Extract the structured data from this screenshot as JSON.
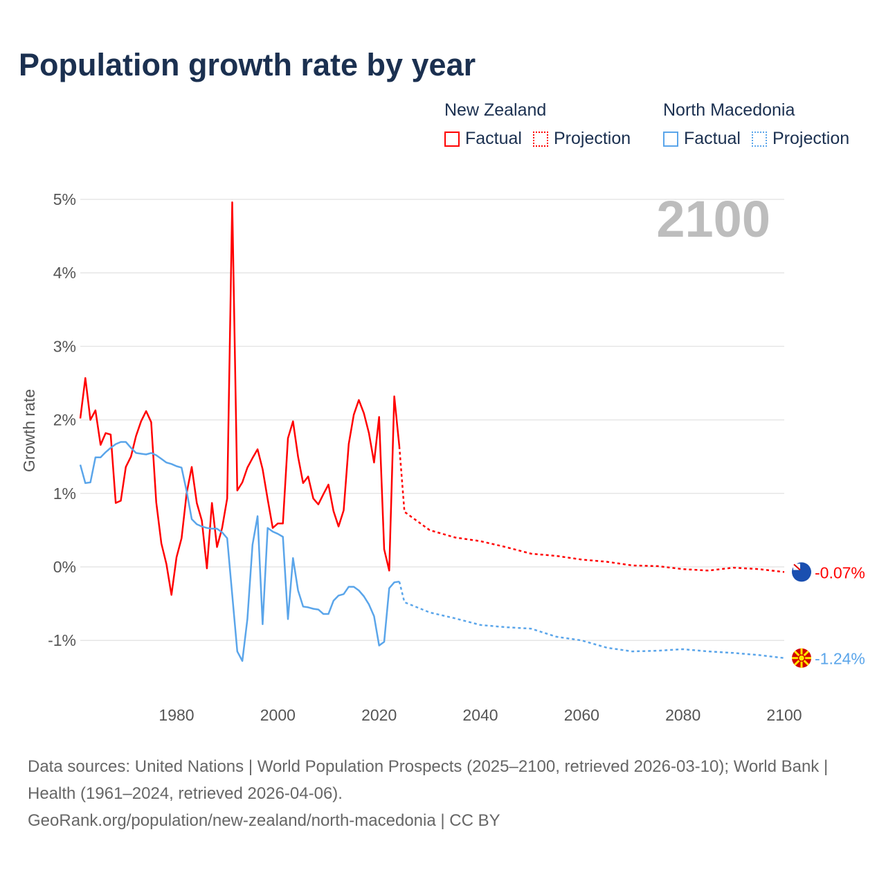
{
  "title": "Population growth rate by year",
  "legend": {
    "groups": [
      {
        "name": "New Zealand",
        "color": "#ff0000",
        "factual": "Factual",
        "projection": "Projection"
      },
      {
        "name": "North Macedonia",
        "color": "#5aa5ea",
        "factual": "Factual",
        "projection": "Projection"
      }
    ]
  },
  "footer": {
    "sources": "Data sources: United Nations | World Population Prospects (2025–2100, retrieved 2026-03-10); World Bank | Health (1961–2024, retrieved 2026-04-06).",
    "url": "GeoRank.org/population/new-zealand/north-macedonia | CC BY"
  },
  "chart_data": {
    "type": "line",
    "title": "Population growth rate by year",
    "ylabel": "Growth rate",
    "xlabel": "",
    "year_label": "2100",
    "xlim": [
      1961,
      2100
    ],
    "ylim": [
      -1.6,
      5
    ],
    "yticks": [
      {
        "v": 5,
        "label": "5%"
      },
      {
        "v": 4,
        "label": "4%"
      },
      {
        "v": 3,
        "label": "3%"
      },
      {
        "v": 2,
        "label": "2%"
      },
      {
        "v": 1,
        "label": "1%"
      },
      {
        "v": 0,
        "label": "0%"
      },
      {
        "v": -1,
        "label": "-1%"
      }
    ],
    "xticks": [
      {
        "v": 1980,
        "label": "1980"
      },
      {
        "v": 2000,
        "label": "2000"
      },
      {
        "v": 2020,
        "label": "2020"
      },
      {
        "v": 2040,
        "label": "2040"
      },
      {
        "v": 2060,
        "label": "2060"
      },
      {
        "v": 2080,
        "label": "2080"
      },
      {
        "v": 2100,
        "label": "2100"
      }
    ],
    "grid": true,
    "series": [
      {
        "name": "New Zealand",
        "color": "#ff0000",
        "end_label": "-0.07%",
        "factual": {
          "start": 1961,
          "values": [
            2.02,
            2.57,
            2.0,
            2.13,
            1.66,
            1.82,
            1.8,
            0.87,
            0.9,
            1.36,
            1.5,
            1.78,
            1.98,
            2.12,
            1.97,
            0.88,
            0.32,
            0.04,
            -0.38,
            0.13,
            0.39,
            1.0,
            1.36,
            0.87,
            0.63,
            -0.02,
            0.87,
            0.27,
            0.53,
            0.93,
            4.96,
            1.04,
            1.15,
            1.35,
            1.48,
            1.6,
            1.33,
            0.92,
            0.53,
            0.59,
            0.59,
            1.75,
            1.98,
            1.5,
            1.14,
            1.23,
            0.93,
            0.85,
            0.99,
            1.12,
            0.76,
            0.55,
            0.77,
            1.67,
            2.07,
            2.27,
            2.09,
            1.82,
            1.42,
            2.04,
            0.24,
            -0.05,
            2.32,
            1.64
          ]
        },
        "projection": {
          "x": [
            2024,
            2025,
            2030,
            2035,
            2040,
            2045,
            2050,
            2055,
            2060,
            2065,
            2070,
            2075,
            2080,
            2085,
            2090,
            2095,
            2100
          ],
          "values": [
            1.64,
            0.75,
            0.5,
            0.4,
            0.35,
            0.27,
            0.18,
            0.15,
            0.1,
            0.07,
            0.02,
            0.01,
            -0.03,
            -0.05,
            -0.01,
            -0.03,
            -0.07
          ]
        }
      },
      {
        "name": "North Macedonia",
        "color": "#5aa5ea",
        "end_label": "-1.24%",
        "factual": {
          "start": 1961,
          "values": [
            1.39,
            1.14,
            1.15,
            1.49,
            1.49,
            1.56,
            1.62,
            1.67,
            1.7,
            1.7,
            1.62,
            1.55,
            1.54,
            1.53,
            1.55,
            1.52,
            1.47,
            1.42,
            1.4,
            1.37,
            1.35,
            1.03,
            0.65,
            0.58,
            0.55,
            0.53,
            0.52,
            0.52,
            0.47,
            0.39,
            -0.38,
            -1.15,
            -1.28,
            -0.71,
            0.3,
            0.69,
            -0.78,
            0.53,
            0.48,
            0.45,
            0.41,
            -0.71,
            0.12,
            -0.32,
            -0.54,
            -0.55,
            -0.57,
            -0.58,
            -0.64,
            -0.64,
            -0.46,
            -0.39,
            -0.37,
            -0.27,
            -0.27,
            -0.32,
            -0.4,
            -0.51,
            -0.67,
            -1.07,
            -1.02,
            -0.29,
            -0.21,
            -0.2
          ]
        },
        "projection": {
          "x": [
            2024,
            2025,
            2030,
            2035,
            2040,
            2045,
            2050,
            2055,
            2060,
            2065,
            2070,
            2075,
            2080,
            2085,
            2090,
            2095,
            2100
          ],
          "values": [
            -0.2,
            -0.48,
            -0.62,
            -0.7,
            -0.79,
            -0.82,
            -0.84,
            -0.95,
            -1.0,
            -1.1,
            -1.15,
            -1.14,
            -1.12,
            -1.15,
            -1.17,
            -1.2,
            -1.24
          ]
        }
      }
    ]
  }
}
